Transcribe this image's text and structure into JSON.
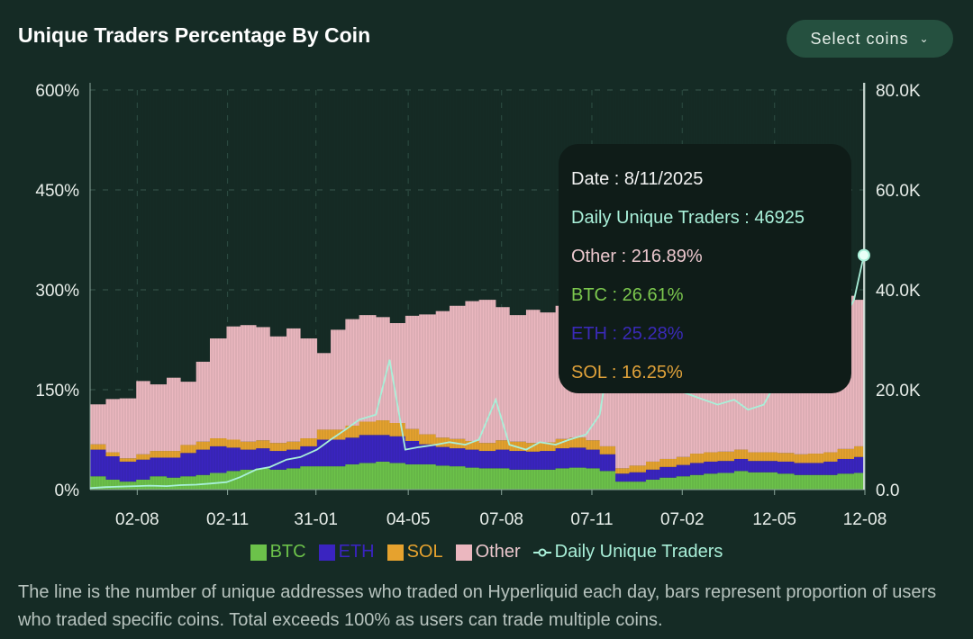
{
  "header": {
    "title": "Unique Traders Percentage By Coin",
    "select_label": "Select coins",
    "select_icon": "chevron-down-icon"
  },
  "colors": {
    "background": "#152b25",
    "BTC": "#6cc24a",
    "ETH": "#3a24c0",
    "SOL": "#e6a22e",
    "Other": "#ebb7bf",
    "line": "#a9f0d9",
    "button": "#25503f"
  },
  "chart_data": {
    "type": "bar",
    "stacked": true,
    "title": "Unique Traders Percentage By Coin",
    "y_left": {
      "ticks": [
        "0%",
        "150%",
        "300%",
        "450%",
        "600%"
      ],
      "range": [
        0,
        600
      ]
    },
    "y_right": {
      "ticks": [
        "0.0",
        "20.0K",
        "40.0K",
        "60.0K",
        "80.0K"
      ],
      "range": [
        0,
        80000
      ]
    },
    "x_range": [
      "2023-06-15",
      "2025-08-12"
    ],
    "x_ticks": [
      {
        "label": "02-08",
        "date": "2023-08-02"
      },
      {
        "label": "02-11",
        "date": "2023-11-02"
      },
      {
        "label": "31-01",
        "date": "2024-01-31"
      },
      {
        "label": "04-05",
        "date": "2024-05-04"
      },
      {
        "label": "07-08",
        "date": "2024-08-07"
      },
      {
        "label": "07-11",
        "date": "2024-11-07"
      },
      {
        "label": "07-02",
        "date": "2025-02-07"
      },
      {
        "label": "12-05",
        "date": "2025-05-12"
      },
      {
        "label": "12-08",
        "date": "2025-08-12"
      }
    ],
    "grid": true,
    "legend_position": "bottom",
    "dates": [
      "2023-06-15",
      "2023-07-01",
      "2023-07-15",
      "2023-08-01",
      "2023-08-15",
      "2023-09-01",
      "2023-09-15",
      "2023-10-01",
      "2023-10-15",
      "2023-11-01",
      "2023-11-15",
      "2023-12-01",
      "2023-12-15",
      "2024-01-01",
      "2024-01-15",
      "2024-02-01",
      "2024-02-15",
      "2024-03-01",
      "2024-03-15",
      "2024-04-01",
      "2024-04-15",
      "2024-05-01",
      "2024-05-15",
      "2024-06-01",
      "2024-06-15",
      "2024-07-01",
      "2024-07-15",
      "2024-08-01",
      "2024-08-15",
      "2024-09-01",
      "2024-09-15",
      "2024-10-01",
      "2024-10-15",
      "2024-11-01",
      "2024-11-15",
      "2024-12-01",
      "2024-12-15",
      "2025-01-01",
      "2025-01-15",
      "2025-02-01",
      "2025-02-15",
      "2025-03-01",
      "2025-03-15",
      "2025-04-01",
      "2025-04-15",
      "2025-05-01",
      "2025-05-15",
      "2025-06-01",
      "2025-06-15",
      "2025-07-01",
      "2025-07-15",
      "2025-08-01",
      "2025-08-11"
    ],
    "series": [
      {
        "name": "BTC",
        "axis": "left",
        "values": [
          20,
          15,
          12,
          15,
          20,
          18,
          20,
          22,
          25,
          28,
          30,
          32,
          30,
          32,
          35,
          35,
          35,
          38,
          40,
          42,
          40,
          38,
          38,
          36,
          35,
          33,
          32,
          32,
          30,
          30,
          30,
          32,
          33,
          32,
          28,
          12,
          12,
          15,
          18,
          20,
          22,
          24,
          25,
          28,
          26,
          26,
          24,
          22,
          22,
          22,
          24,
          25,
          26.61
        ]
      },
      {
        "name": "ETH",
        "axis": "left",
        "values": [
          40,
          35,
          30,
          30,
          28,
          30,
          35,
          38,
          40,
          35,
          30,
          30,
          28,
          28,
          30,
          40,
          40,
          40,
          42,
          40,
          40,
          35,
          30,
          28,
          27,
          27,
          26,
          28,
          28,
          27,
          28,
          30,
          30,
          28,
          25,
          12,
          14,
          15,
          16,
          17,
          18,
          18,
          18,
          18,
          17,
          17,
          18,
          18,
          18,
          20,
          22,
          24,
          25.28
        ]
      },
      {
        "name": "SOL",
        "axis": "left",
        "values": [
          8,
          6,
          5,
          8,
          10,
          10,
          12,
          12,
          12,
          12,
          12,
          12,
          12,
          12,
          12,
          15,
          15,
          18,
          20,
          22,
          20,
          18,
          15,
          14,
          14,
          13,
          12,
          14,
          14,
          13,
          13,
          14,
          15,
          14,
          12,
          8,
          10,
          12,
          12,
          12,
          14,
          14,
          14,
          14,
          13,
          13,
          13,
          13,
          14,
          14,
          15,
          16,
          16.25
        ]
      },
      {
        "name": "Other",
        "axis": "left",
        "values": [
          60,
          80,
          90,
          110,
          100,
          110,
          95,
          120,
          150,
          170,
          175,
          170,
          160,
          170,
          150,
          115,
          150,
          160,
          160,
          155,
          150,
          170,
          180,
          190,
          200,
          210,
          215,
          200,
          190,
          200,
          195,
          200,
          200,
          210,
          215,
          240,
          240,
          235,
          230,
          225,
          220,
          220,
          215,
          215,
          220,
          220,
          225,
          230,
          230,
          235,
          230,
          220,
          216.89
        ]
      },
      {
        "name": "Daily Unique Traders",
        "axis": "right",
        "type": "line",
        "values": [
          300,
          500,
          600,
          700,
          800,
          700,
          900,
          1000,
          1200,
          1500,
          2500,
          4000,
          4500,
          6000,
          6500,
          8000,
          10000,
          12000,
          14000,
          15000,
          26000,
          8000,
          8500,
          9000,
          9500,
          9000,
          10000,
          18000,
          9000,
          8000,
          9500,
          9000,
          10000,
          11000,
          15000,
          35000,
          32000,
          26000,
          22000,
          20000,
          19000,
          18000,
          17000,
          18000,
          16000,
          17000,
          22000,
          25000,
          27000,
          28000,
          32000,
          38000,
          46925
        ]
      }
    ]
  },
  "legend": [
    {
      "label": "BTC",
      "key": "BTC"
    },
    {
      "label": "ETH",
      "key": "ETH"
    },
    {
      "label": "SOL",
      "key": "SOL"
    },
    {
      "label": "Other",
      "key": "Other"
    },
    {
      "label": "Daily Unique Traders",
      "key": "line"
    }
  ],
  "tooltip": {
    "date": "Date : 8/11/2025",
    "traders": "Daily Unique Traders : 46925",
    "other": "Other : 216.89%",
    "btc": "BTC : 26.61%",
    "eth": "ETH : 25.28%",
    "sol": "SOL : 16.25%"
  },
  "footnote": "The line is the number of unique addresses who traded on Hyperliquid each day, bars represent proportion of users who traded specific coins. Total exceeds 100% as users can trade multiple coins."
}
